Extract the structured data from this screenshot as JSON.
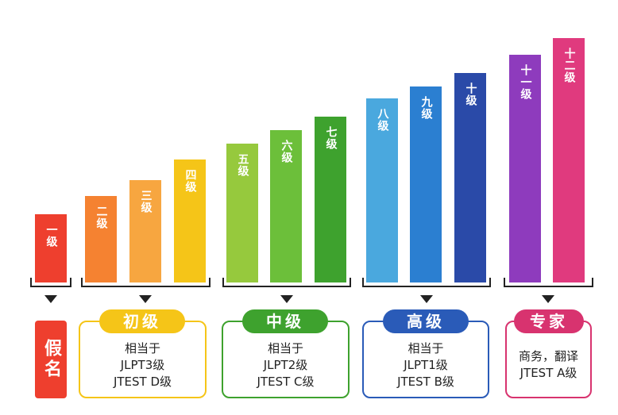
{
  "levels": [
    {
      "label": "一级",
      "color": "#ee3f2e"
    },
    {
      "label": "二级",
      "color": "#f58231"
    },
    {
      "label": "三级",
      "color": "#f7a640"
    },
    {
      "label": "四级",
      "color": "#f5c518"
    },
    {
      "label": "五级",
      "color": "#96c93d"
    },
    {
      "label": "六级",
      "color": "#6cbf3a"
    },
    {
      "label": "七级",
      "color": "#3ea22e"
    },
    {
      "label": "八级",
      "color": "#4aa8de"
    },
    {
      "label": "九级",
      "color": "#2b7fd1"
    },
    {
      "label": "十级",
      "color": "#2a4aa8"
    },
    {
      "label": "十一级",
      "color": "#8e3bbd"
    },
    {
      "label": "十二级",
      "color": "#e03a7e"
    }
  ],
  "kana": {
    "label": "假名",
    "color": "#ee3f2e"
  },
  "groups": [
    {
      "title": "初级",
      "color": "#f5c518",
      "lines": [
        "相当于",
        "JLPT3级",
        "JTEST D级"
      ]
    },
    {
      "title": "中级",
      "color": "#3ea22e",
      "lines": [
        "相当于",
        "JLPT2级",
        "JTEST C级"
      ]
    },
    {
      "title": "高级",
      "color": "#2a5bb8",
      "lines": [
        "相当于",
        "JLPT1级",
        "JTEST B级"
      ]
    },
    {
      "title": "专家",
      "color": "#d8336f",
      "lines": [
        "商务，翻译",
        "JTEST A级"
      ]
    }
  ]
}
